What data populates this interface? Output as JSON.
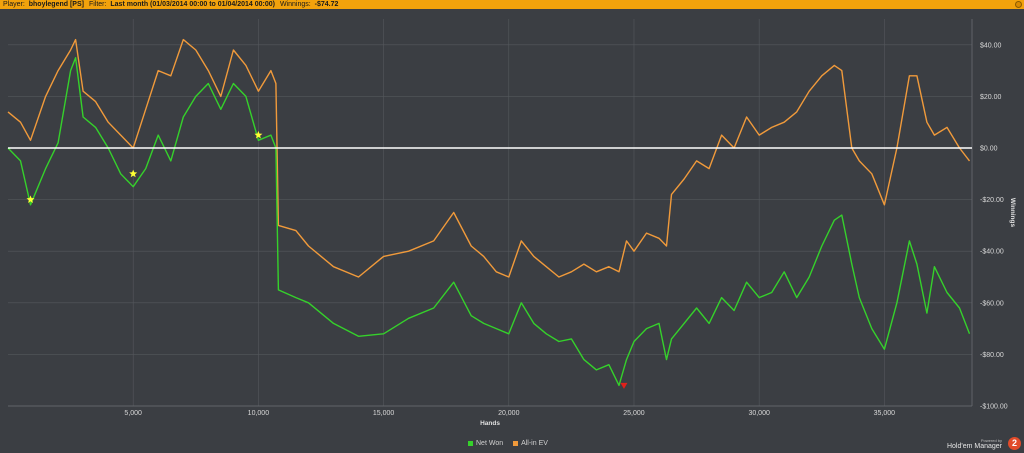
{
  "header": {
    "player_label": "Player:",
    "player_value": "bhoylegend [PS]",
    "filter_label": "Filter:",
    "filter_value": "Last month (01/03/2014 00:00 to 01/04/2014 00:00)",
    "winnings_label": "Winnings:",
    "winnings_value": "-$74.72"
  },
  "branding": {
    "powered_by": "Powered by",
    "product": "Hold'em Manager",
    "badge": "2"
  },
  "colors": {
    "background": "#3b3e43",
    "grid": "#55585d",
    "net_won": "#35d12b",
    "all_in_ev": "#f09a3b",
    "zero_line": "#ffffff",
    "marker_star": "#ffff33",
    "marker_min": "#e0201a"
  },
  "chart_data": {
    "type": "line",
    "xlabel": "Hands",
    "ylabel": "Winnings",
    "xlim": [
      0,
      38500
    ],
    "ylim": [
      -100,
      50
    ],
    "x_ticks": [
      5000,
      10000,
      15000,
      20000,
      25000,
      30000,
      35000
    ],
    "x_tick_labels": [
      "5,000",
      "10,000",
      "15,000",
      "20,000",
      "25,000",
      "30,000",
      "35,000"
    ],
    "y_ticks": [
      40,
      20,
      0,
      -20,
      -40,
      -60,
      -80,
      -100
    ],
    "y_tick_labels": [
      "$40.00",
      "$20.00",
      "$0.00",
      "-$20.00",
      "-$40.00",
      "-$60.00",
      "-$80.00",
      "-$100.00"
    ],
    "grid": true,
    "legend_position": "bottom-center",
    "series": [
      {
        "name": "Net Won",
        "color": "#35d12b",
        "x": [
          0,
          500,
          900,
          1500,
          2000,
          2500,
          2700,
          3000,
          3500,
          4000,
          4500,
          5000,
          5500,
          6000,
          6500,
          7000,
          7500,
          8000,
          8500,
          9000,
          9500,
          10000,
          10500,
          10700,
          10800,
          11500,
          12000,
          13000,
          14000,
          15000,
          16000,
          17000,
          17800,
          18500,
          19000,
          19500,
          20000,
          20500,
          21000,
          21500,
          22000,
          22500,
          23000,
          23500,
          24000,
          24400,
          24700,
          25000,
          25500,
          26000,
          26300,
          26500,
          27000,
          27500,
          28000,
          28500,
          29000,
          29500,
          30000,
          30500,
          31000,
          31500,
          32000,
          32500,
          33000,
          33300,
          33700,
          34000,
          34500,
          35000,
          35500,
          36000,
          36300,
          36700,
          37000,
          37500,
          38000,
          38400
        ],
        "y": [
          0,
          -5,
          -22,
          -8,
          2,
          30,
          35,
          12,
          8,
          0,
          -10,
          -15,
          -8,
          5,
          -5,
          12,
          20,
          25,
          15,
          25,
          20,
          3,
          5,
          0,
          -55,
          -58,
          -60,
          -68,
          -73,
          -72,
          -66,
          -62,
          -52,
          -65,
          -68,
          -70,
          -72,
          -60,
          -68,
          -72,
          -75,
          -74,
          -82,
          -86,
          -84,
          -92,
          -82,
          -75,
          -70,
          -68,
          -82,
          -74,
          -68,
          -62,
          -68,
          -58,
          -63,
          -52,
          -58,
          -56,
          -48,
          -58,
          -50,
          -38,
          -28,
          -26,
          -45,
          -58,
          -70,
          -78,
          -60,
          -36,
          -45,
          -64,
          -46,
          -56,
          -62,
          -72
        ]
      },
      {
        "name": "All-in EV",
        "color": "#f09a3b",
        "x": [
          0,
          500,
          900,
          1500,
          2000,
          2500,
          2700,
          3000,
          3500,
          4000,
          4500,
          5000,
          5500,
          6000,
          6500,
          7000,
          7500,
          8000,
          8500,
          9000,
          9500,
          10000,
          10500,
          10700,
          10800,
          11500,
          12000,
          13000,
          14000,
          15000,
          16000,
          17000,
          17800,
          18500,
          19000,
          19500,
          20000,
          20500,
          21000,
          21500,
          22000,
          22500,
          23000,
          23500,
          24000,
          24400,
          24700,
          25000,
          25500,
          26000,
          26300,
          26500,
          27000,
          27500,
          28000,
          28500,
          29000,
          29500,
          30000,
          30500,
          31000,
          31500,
          32000,
          32500,
          33000,
          33300,
          33700,
          34000,
          34500,
          35000,
          35500,
          36000,
          36300,
          36700,
          37000,
          37500,
          38000,
          38400
        ],
        "y": [
          14,
          10,
          3,
          20,
          30,
          38,
          42,
          22,
          18,
          10,
          5,
          0,
          15,
          30,
          28,
          42,
          38,
          30,
          20,
          38,
          32,
          22,
          30,
          25,
          -30,
          -32,
          -38,
          -46,
          -50,
          -42,
          -40,
          -36,
          -25,
          -38,
          -42,
          -48,
          -50,
          -36,
          -42,
          -46,
          -50,
          -48,
          -45,
          -48,
          -46,
          -48,
          -36,
          -40,
          -33,
          -35,
          -38,
          -18,
          -12,
          -5,
          -8,
          5,
          0,
          12,
          5,
          8,
          10,
          14,
          22,
          28,
          32,
          30,
          0,
          -5,
          -10,
          -22,
          0,
          28,
          28,
          10,
          5,
          8,
          0,
          -5
        ]
      }
    ],
    "markers": [
      {
        "type": "star",
        "x": 900,
        "y": -20
      },
      {
        "type": "star",
        "x": 5000,
        "y": -10
      },
      {
        "type": "star",
        "x": 10000,
        "y": 5
      },
      {
        "type": "min",
        "x": 24600,
        "y": -92
      }
    ]
  }
}
